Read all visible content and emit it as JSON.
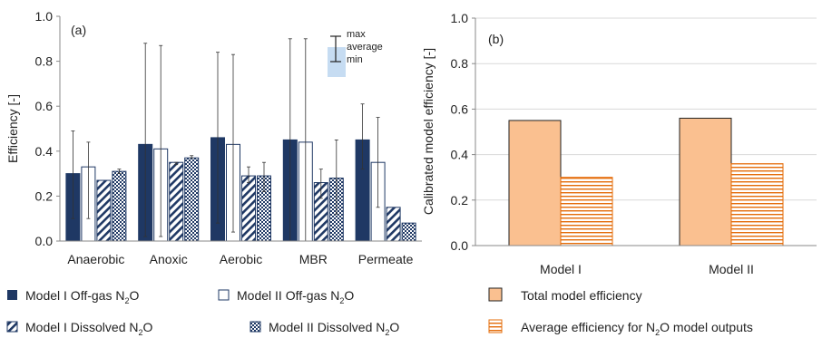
{
  "chart_data": [
    {
      "type": "bar",
      "panel_label": "(a)",
      "ylabel": "Efficiency [-]",
      "ylim": [
        0,
        1.0
      ],
      "yticks": [
        "0.0",
        "0.2",
        "0.4",
        "0.6",
        "0.8",
        "1.0"
      ],
      "categories": [
        "Anaerobic",
        "Anoxic",
        "Aerobic",
        "MBR",
        "Permeate"
      ],
      "series": [
        {
          "name": "Model I Off-gas N₂O",
          "values": [
            0.3,
            0.43,
            0.46,
            0.45,
            0.45
          ],
          "min": [
            0.1,
            0.02,
            0.08,
            0.0,
            0.32
          ],
          "max": [
            0.49,
            0.88,
            0.84,
            0.9,
            0.61
          ],
          "fill": "#1f3864",
          "pattern": "solid"
        },
        {
          "name": "Model II Off-gas N₂O",
          "values": [
            0.33,
            0.41,
            0.43,
            0.44,
            0.35
          ],
          "min": [
            0.1,
            0.02,
            0.04,
            0.0,
            0.15
          ],
          "max": [
            0.44,
            0.87,
            0.83,
            0.9,
            0.55
          ],
          "fill": "#ffffff",
          "pattern": "outline"
        },
        {
          "name": "Model I Dissolved N₂O",
          "values": [
            0.27,
            0.35,
            0.29,
            0.26,
            0.15
          ],
          "min": [
            0.27,
            0.34,
            0.26,
            0.19,
            0.15
          ],
          "max": [
            0.27,
            0.35,
            0.33,
            0.32,
            0.15
          ],
          "fill": "#1f3864",
          "pattern": "diagonal"
        },
        {
          "name": "Model II Dissolved N₂O",
          "values": [
            0.31,
            0.37,
            0.29,
            0.28,
            0.08
          ],
          "min": [
            0.3,
            0.37,
            0.22,
            0.12,
            0.08
          ],
          "max": [
            0.32,
            0.38,
            0.35,
            0.45,
            0.08
          ],
          "fill": "#1f3864",
          "pattern": "checker"
        }
      ],
      "inset_legend": [
        "max",
        "average",
        "min"
      ],
      "legend": {
        "items": [
          {
            "pre": "Model I Off-gas N",
            "sub": "2",
            "post": "O"
          },
          {
            "pre": "Model II Off-gas N",
            "sub": "2",
            "post": "O"
          },
          {
            "pre": "Model I Dissolved N",
            "sub": "2",
            "post": "O"
          },
          {
            "pre": "Model II Dissolved N",
            "sub": "2",
            "post": "O"
          }
        ]
      }
    },
    {
      "type": "bar",
      "panel_label": "(b)",
      "ylabel": "Calibrated model efficiency [-]",
      "ylim": [
        0,
        1.0
      ],
      "yticks": [
        "0.0",
        "0.2",
        "0.4",
        "0.6",
        "0.8",
        "1.0"
      ],
      "categories": [
        "Model I",
        "Model II"
      ],
      "series": [
        {
          "name": "Total model efficiency",
          "values": [
            0.55,
            0.56
          ],
          "fill": "#fac090",
          "pattern": "solid"
        },
        {
          "name": "Average efficiency for N₂O model outputs",
          "values": [
            0.3,
            0.36
          ],
          "fill": "#ffffff",
          "stroke": "#e46c0a",
          "pattern": "horizontal"
        }
      ],
      "legend": {
        "items": [
          {
            "pre": "Total model efficiency",
            "sub": "",
            "post": ""
          },
          {
            "pre": "Average efficiency for N",
            "sub": "2",
            "post": "O model outputs"
          }
        ]
      }
    }
  ]
}
